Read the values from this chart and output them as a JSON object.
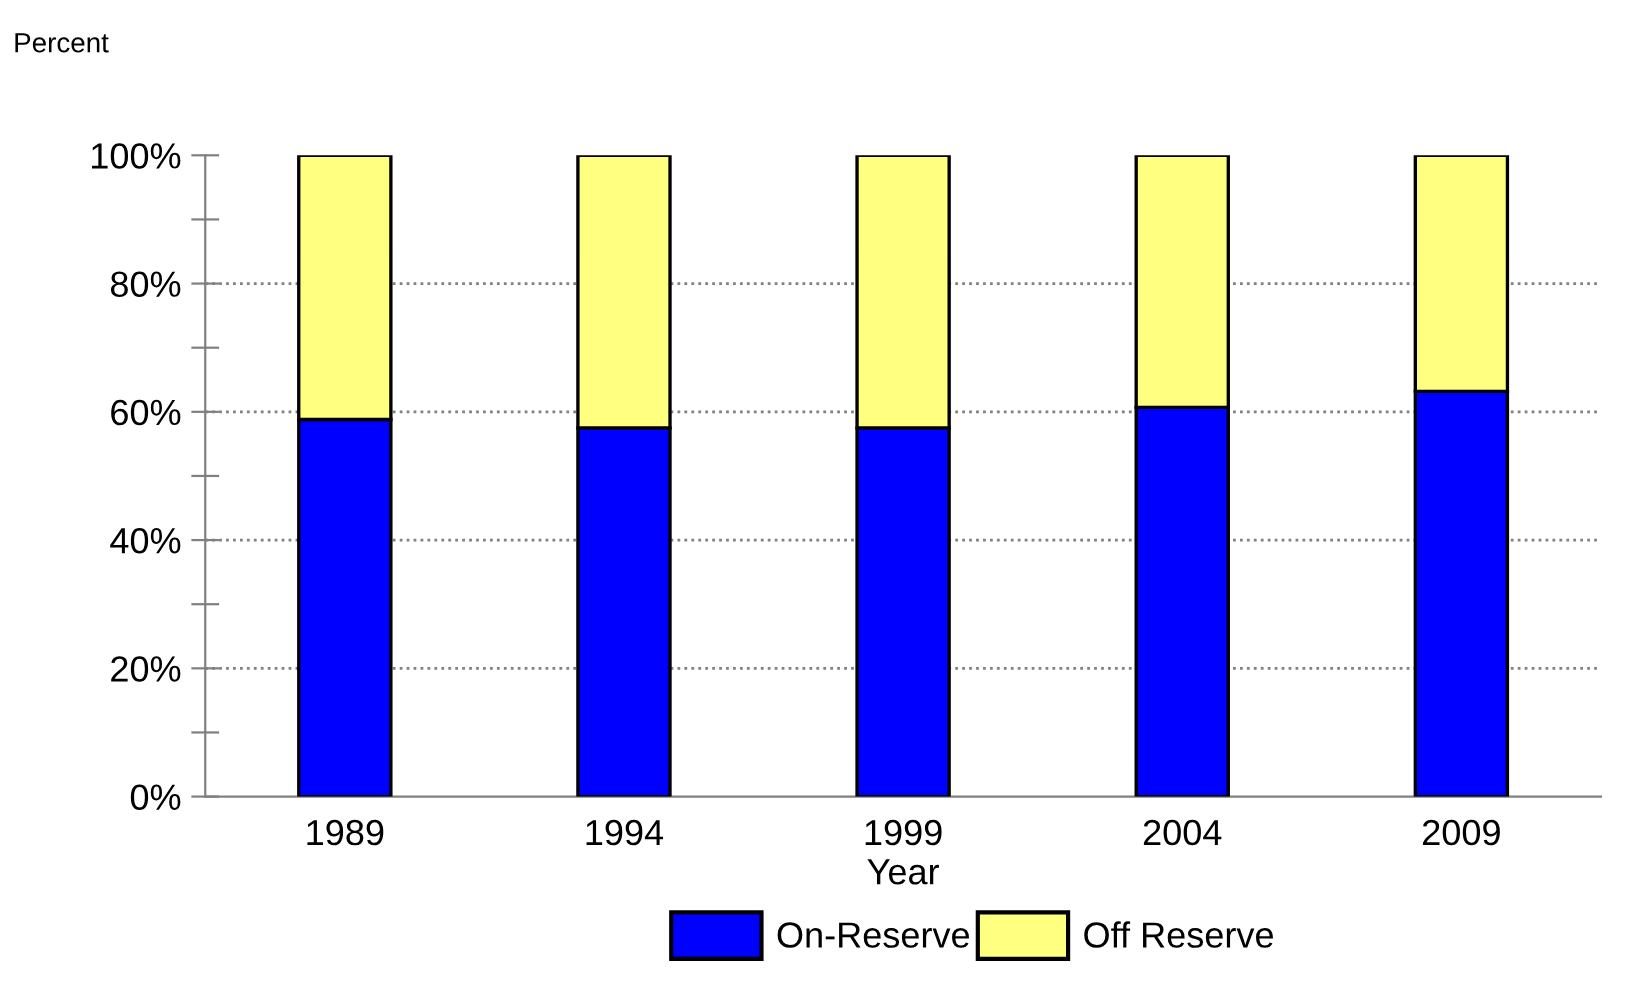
{
  "chart_data": {
    "type": "bar",
    "stacked": true,
    "ylabel": "Percent",
    "xlabel": "Year",
    "categories": [
      "1989",
      "1994",
      "1999",
      "2004",
      "2009"
    ],
    "series": [
      {
        "name": "On-Reserve",
        "color": "#0000ff",
        "values": [
          58.8,
          57.5,
          57.5,
          60.7,
          63.2
        ]
      },
      {
        "name": "Off Reserve",
        "color": "#ffff80",
        "values": [
          41.2,
          42.5,
          42.5,
          39.3,
          36.8
        ]
      }
    ],
    "ylim": [
      0,
      100
    ],
    "yticks": [
      {
        "value": 0,
        "label": "0%"
      },
      {
        "value": 10,
        "label": null
      },
      {
        "value": 20,
        "label": "20%"
      },
      {
        "value": 30,
        "label": null
      },
      {
        "value": 40,
        "label": "40%"
      },
      {
        "value": 50,
        "label": null
      },
      {
        "value": 60,
        "label": "60%"
      },
      {
        "value": 70,
        "label": null
      },
      {
        "value": 80,
        "label": "80%"
      },
      {
        "value": 90,
        "label": null
      },
      {
        "value": 100,
        "label": "100%"
      }
    ],
    "grid": "y",
    "legend": "bottom"
  }
}
